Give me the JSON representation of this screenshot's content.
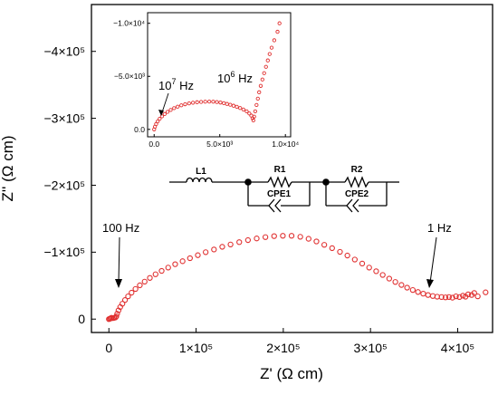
{
  "chart_data": [
    {
      "type": "scatter",
      "xlabel": "Z' (Ω cm)",
      "ylabel": "Z'' (Ω cm)",
      "xlim": [
        -20000,
        440000
      ],
      "ylim": [
        20000,
        -470000
      ],
      "x_ticks": [
        0,
        100000,
        200000,
        300000,
        400000
      ],
      "x_tick_labels": [
        "0",
        "1×10⁵",
        "2×10⁵",
        "3×10⁵",
        "4×10⁵"
      ],
      "y_ticks": [
        0,
        -100000,
        -200000,
        -300000,
        -400000
      ],
      "y_tick_labels": [
        "0",
        "−1×10⁵",
        "−2×10⁵",
        "−3×10⁵",
        "−4×10⁵"
      ],
      "marker_color": "#e03030",
      "annotations": [
        {
          "text": "100 Hz",
          "x": 7000,
          "y": -5000
        },
        {
          "text": "1 Hz",
          "x": 378000,
          "y": -35000
        }
      ],
      "series": [
        {
          "points": [
            [
              0,
              0
            ],
            [
              1000,
              -500
            ],
            [
              2000,
              -1200
            ],
            [
              3000,
              -2000
            ],
            [
              4500,
              -1500
            ],
            [
              6000,
              -1800
            ],
            [
              7500,
              -2500
            ],
            [
              8500,
              -4000
            ],
            [
              9500,
              -8000
            ],
            [
              11000,
              -13000
            ],
            [
              13000,
              -18000
            ],
            [
              15500,
              -23000
            ],
            [
              18500,
              -28500
            ],
            [
              22000,
              -34000
            ],
            [
              26000,
              -39500
            ],
            [
              30500,
              -45000
            ],
            [
              35500,
              -50500
            ],
            [
              41000,
              -56000
            ],
            [
              47000,
              -61500
            ],
            [
              53500,
              -67000
            ],
            [
              60500,
              -72000
            ],
            [
              68000,
              -77000
            ],
            [
              76000,
              -82000
            ],
            [
              84500,
              -86500
            ],
            [
              93000,
              -91000
            ],
            [
              102000,
              -95500
            ],
            [
              111000,
              -100000
            ],
            [
              120500,
              -104000
            ],
            [
              130000,
              -108000
            ],
            [
              139500,
              -111500
            ],
            [
              149500,
              -115000
            ],
            [
              159500,
              -118000
            ],
            [
              169500,
              -120500
            ],
            [
              179500,
              -122500
            ],
            [
              189500,
              -124000
            ],
            [
              199500,
              -124500
            ],
            [
              209500,
              -124500
            ],
            [
              219500,
              -123000
            ],
            [
              229000,
              -120000
            ],
            [
              238000,
              -116000
            ],
            [
              247000,
              -111000
            ],
            [
              256000,
              -106000
            ],
            [
              265000,
              -100500
            ],
            [
              273500,
              -95000
            ],
            [
              282000,
              -89000
            ],
            [
              290500,
              -83000
            ],
            [
              298500,
              -77000
            ],
            [
              306500,
              -71500
            ],
            [
              314000,
              -66000
            ],
            [
              321500,
              -60500
            ],
            [
              328500,
              -55500
            ],
            [
              335500,
              -51000
            ],
            [
              342000,
              -47000
            ],
            [
              348500,
              -43500
            ],
            [
              354500,
              -40500
            ],
            [
              360500,
              -38000
            ],
            [
              366000,
              -36000
            ],
            [
              371500,
              -34500
            ],
            [
              376500,
              -33500
            ],
            [
              381500,
              -33000
            ],
            [
              386000,
              -32500
            ],
            [
              390000,
              -33000
            ],
            [
              394000,
              -32000
            ],
            [
              398000,
              -34000
            ],
            [
              402000,
              -33000
            ],
            [
              406000,
              -35000
            ],
            [
              409000,
              -33500
            ],
            [
              412000,
              -37000
            ],
            [
              416000,
              -36000
            ],
            [
              419000,
              -39000
            ],
            [
              423000,
              -34000
            ],
            [
              432000,
              -40000
            ]
          ]
        }
      ]
    },
    {
      "type": "scatter",
      "xlim": [
        -500,
        10400
      ],
      "ylim": [
        700,
        -11000
      ],
      "x_ticks": [
        0,
        5000,
        10000
      ],
      "x_tick_labels": [
        "0.0",
        "5.0×10³",
        "1.0×10⁴"
      ],
      "y_ticks": [
        0,
        -5000,
        -10000
      ],
      "y_tick_labels": [
        "0.0",
        "−5.0×10³",
        "−1.0×10⁴"
      ],
      "marker_color": "#e03030",
      "annotations": [
        {
          "text": "10",
          "sup": "7",
          "unit": " Hz",
          "x": 500,
          "y": -1200
        },
        {
          "text": "10",
          "sup": "6",
          "unit": " Hz",
          "x": 6200,
          "y": -2200
        }
      ],
      "series": [
        {
          "points": [
            [
              0,
              0
            ],
            [
              60,
              -250
            ],
            [
              150,
              -500
            ],
            [
              270,
              -750
            ],
            [
              420,
              -1000
            ],
            [
              600,
              -1230
            ],
            [
              800,
              -1450
            ],
            [
              1020,
              -1650
            ],
            [
              1260,
              -1830
            ],
            [
              1520,
              -2000
            ],
            [
              1790,
              -2140
            ],
            [
              2070,
              -2270
            ],
            [
              2360,
              -2370
            ],
            [
              2660,
              -2450
            ],
            [
              2960,
              -2510
            ],
            [
              3270,
              -2560
            ],
            [
              3580,
              -2590
            ],
            [
              3890,
              -2610
            ],
            [
              4200,
              -2620
            ],
            [
              4500,
              -2610
            ],
            [
              4780,
              -2580
            ],
            [
              5050,
              -2530
            ],
            [
              5310,
              -2470
            ],
            [
              5550,
              -2400
            ],
            [
              5800,
              -2320
            ],
            [
              6050,
              -2230
            ],
            [
              6300,
              -2130
            ],
            [
              6550,
              -2010
            ],
            [
              6800,
              -1870
            ],
            [
              7050,
              -1700
            ],
            [
              7250,
              -1500
            ],
            [
              7400,
              -1300
            ],
            [
              7500,
              -1050
            ],
            [
              7560,
              -850
            ],
            [
              7620,
              -1200
            ],
            [
              7700,
              -1700
            ],
            [
              7800,
              -2300
            ],
            [
              7900,
              -2900
            ],
            [
              8000,
              -3500
            ],
            [
              8120,
              -4100
            ],
            [
              8250,
              -4700
            ],
            [
              8380,
              -5300
            ],
            [
              8520,
              -5900
            ],
            [
              8660,
              -6500
            ],
            [
              8800,
              -7100
            ],
            [
              8950,
              -7700
            ],
            [
              9150,
              -8400
            ],
            [
              9400,
              -9200
            ],
            [
              9550,
              -10000
            ]
          ]
        }
      ]
    }
  ],
  "circuit": {
    "labels": [
      "L1",
      "R1",
      "CPE1",
      "R2",
      "CPE2"
    ]
  }
}
